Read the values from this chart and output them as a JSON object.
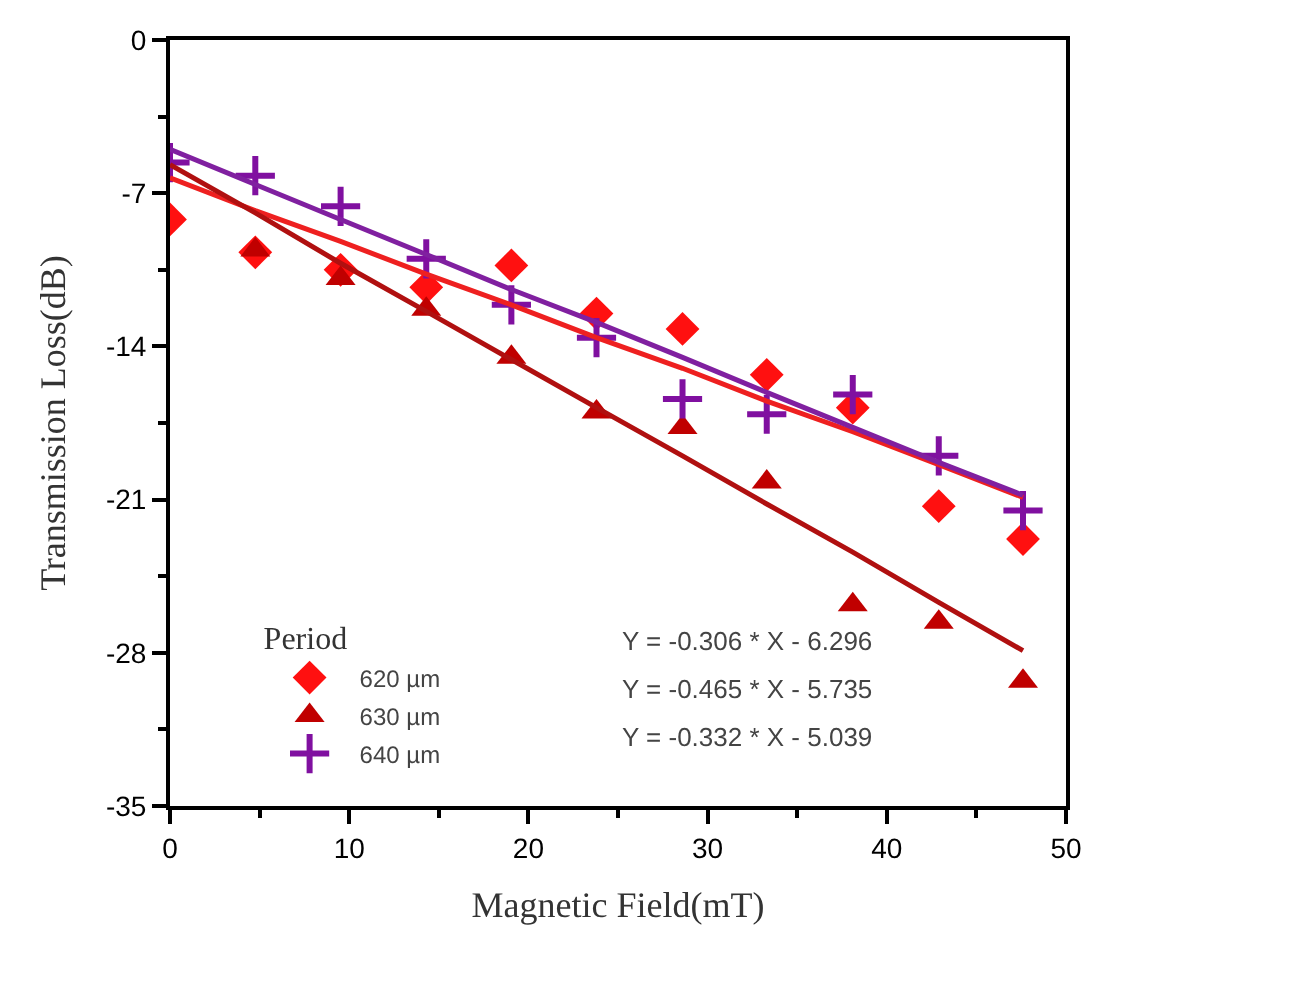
{
  "chart_data": {
    "type": "scatter",
    "xlabel": "Magnetic Field(mT)",
    "ylabel": "Transmission Loss(dB)",
    "legend_title": "Period",
    "legend": "bottom left",
    "xlim": [
      0,
      50
    ],
    "xticks": [
      0,
      10,
      20,
      30,
      40,
      50
    ],
    "ylim": [
      -35,
      0
    ],
    "yticks": [
      -35,
      -28,
      -21,
      -14,
      -7,
      0
    ],
    "x": [
      0,
      4.76,
      9.52,
      14.3,
      19.05,
      23.8,
      28.6,
      33.3,
      38.1,
      42.9,
      47.6
    ],
    "series": [
      {
        "name": "620 µm",
        "color": "#ff1010",
        "marker": "diamond",
        "values": [
          -8.2,
          -9.7,
          -10.5,
          -11.3,
          -10.3,
          -12.5,
          -13.2,
          -15.3,
          -16.8,
          -21.3,
          -22.8
        ]
      },
      {
        "name": "630 µm",
        "color": "#c00000",
        "marker": "triangle",
        "values": [
          null,
          -9.6,
          -10.9,
          -12.3,
          -14.5,
          -17.0,
          -17.7,
          -20.2,
          -25.8,
          -26.6,
          -29.3
        ]
      },
      {
        "name": "640 µm",
        "color": "#8010a0",
        "marker": "cross",
        "values": [
          -5.6,
          -6.2,
          -7.6,
          -10.0,
          -12.1,
          -13.6,
          -16.4,
          -17.1,
          -16.2,
          -19.0,
          -21.5
        ]
      },
      {
        "type": "line",
        "color": "#ee2020",
        "values": [
          -6.3,
          -7.8,
          -9.2,
          -10.7,
          -12.1,
          -13.6,
          -15.0,
          -16.5,
          -17.9,
          -19.4,
          -20.9
        ]
      },
      {
        "type": "line",
        "color": "#b01010",
        "values": [
          -5.7,
          -7.9,
          -10.2,
          -12.4,
          -14.6,
          -16.8,
          -19.0,
          -21.2,
          -23.4,
          -25.7,
          -27.9
        ]
      },
      {
        "type": "line",
        "color": "#8020a0",
        "values": [
          -5.0,
          -6.6,
          -8.2,
          -9.8,
          -11.4,
          -12.9,
          -14.5,
          -16.1,
          -17.7,
          -19.3,
          -20.8
        ]
      }
    ],
    "annotations": [
      "Y = -0.306 * X - 6.296",
      "Y = -0.465 * X - 5.735",
      "Y = -0.332 * X - 5.039"
    ]
  }
}
